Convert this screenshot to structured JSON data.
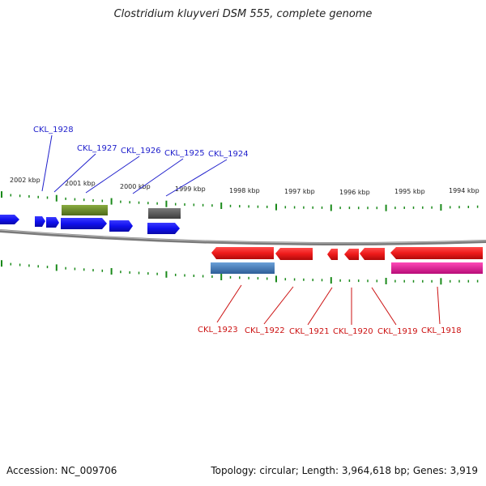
{
  "title": "Clostridium kluyveri DSM 555, complete genome",
  "footer": {
    "accession": "Accession: NC_009706",
    "summary": "Topology: circular; Length: 3,964,618 bp; Genes: 3,919"
  },
  "scale_labels": [
    "2002 kbp",
    "2001 kbp",
    "2000 kbp",
    "1999 kbp",
    "1998 kbp",
    "1997 kbp",
    "1996 kbp",
    "1995 kbp",
    "1994 kbp"
  ],
  "top_gene_labels": [
    "CKL_1928",
    "CKL_1927",
    "CKL_1926",
    "CKL_1925",
    "CKL_1924"
  ],
  "bottom_gene_labels": [
    "CKL_1923",
    "CKL_1922",
    "CKL_1921",
    "CKL_1920",
    "CKL_1919",
    "CKL_1918"
  ],
  "colors": {
    "forward_gene": "#1010ee",
    "reverse_gene": "#ee1a1a",
    "forward_label": "#2020cc",
    "reverse_label": "#cc1111",
    "tick": "#1a8a1a",
    "backbone": "#7a7a7a",
    "olive_feature": "#6e8f2a",
    "gray_feature": "#5a5a5a",
    "steel_feature": "#4a80b8",
    "magenta_feature": "#e0209a"
  }
}
